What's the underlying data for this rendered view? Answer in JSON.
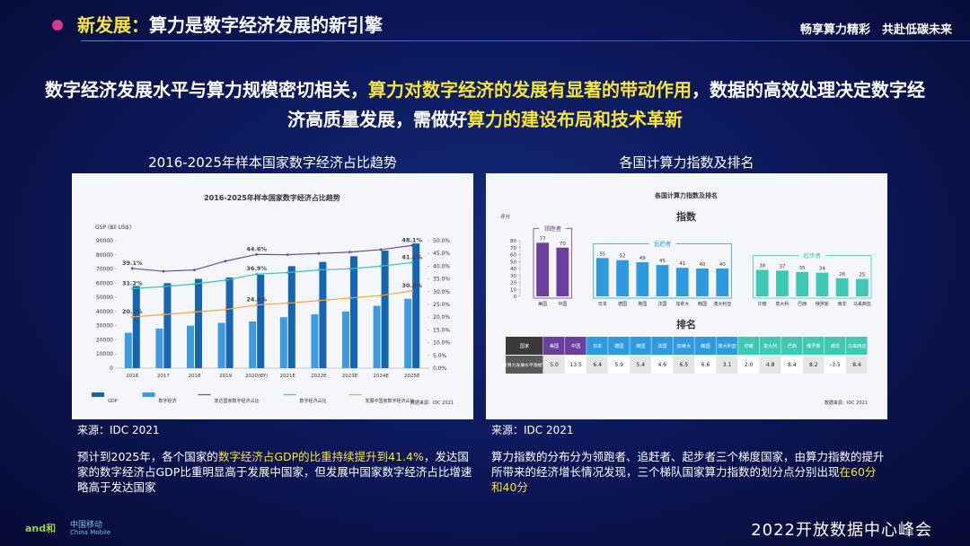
{
  "highlight_color": "#f7e43a",
  "header": {
    "title_segments": [
      {
        "text": "新发展：",
        "highlight": true
      },
      {
        "text": "算力是数字经济发展的新引擎",
        "highlight": false
      }
    ],
    "slogan": "畅享算力精彩　共赴低碳未来"
  },
  "headline": [
    {
      "text": "数字经济发展水平与算力规模密切相关，",
      "highlight": false
    },
    {
      "text": "算力对数字经济的发展有显著的带动作用",
      "highlight": true
    },
    {
      "text": "，数据的高效处理决定数字经济高质量发展，需做好",
      "highlight": false
    },
    {
      "text": "算力的建设布局和技术革新",
      "highlight": true
    }
  ],
  "sections": [
    {
      "heading": "2016-2025年样本国家数字经济占比趋势",
      "source": "来源：IDC 2021",
      "text": [
        {
          "text": "预计到2025年，各个国家的",
          "highlight": false
        },
        {
          "text": "数字经济占GDP的比重持续提升到41.4%",
          "highlight": true
        },
        {
          "text": "，发达国家的数字经济占GDP比重明显高于发展中国家，但发展中国家数字经济占比增速略高于发达国家",
          "highlight": false
        }
      ]
    },
    {
      "heading": "各国计算力指数及排名",
      "source": "来源：IDC 2021",
      "text": [
        {
          "text": "算力指数的分布分为领跑者、追赶者、起步者三个梯度国家，由算力指数的提升所带来的经济增长情况发现，三个梯队国家算力指数的划分点分别出现",
          "highlight": false
        },
        {
          "text": "在60分和40分",
          "highlight": true
        }
      ]
    }
  ],
  "chart_data": [
    {
      "type": "combo",
      "title": "2016-2025年样本国家数字经济占比趋势",
      "y_label": "GSP (Bil US$)",
      "source": "数据来源：IDC 2021",
      "categories": [
        "2016",
        "2017",
        "2018",
        "2019",
        "2020(BY)",
        "2021E",
        "2022E",
        "2023E",
        "2024E",
        "2025E"
      ],
      "series": [
        {
          "name": "GDP",
          "type": "bar",
          "color": "#1565b0",
          "values": [
            58000,
            60000,
            63000,
            64000,
            66000,
            72000,
            75000,
            79000,
            83000,
            88000
          ]
        },
        {
          "name": "数字经济",
          "type": "bar",
          "color": "#3d9be0",
          "values": [
            25000,
            28000,
            30000,
            32000,
            33000,
            36000,
            38000,
            40000,
            44000,
            49000
          ]
        },
        {
          "name": "发达国家数字经济占比",
          "type": "line",
          "axis": "y2",
          "color": "#6a4c9c",
          "values": [
            39.1,
            38,
            38.5,
            42,
            44.6,
            44.5,
            45,
            45.5,
            46.5,
            48.1
          ],
          "value_labels": [
            "39.1%",
            null,
            null,
            null,
            "44.6%",
            null,
            null,
            null,
            null,
            "48.1%"
          ]
        },
        {
          "name": "数字经济占比",
          "type": "line",
          "axis": "y2",
          "color": "#3cc4b4",
          "values": [
            31.2,
            32,
            33,
            34.5,
            36.9,
            37.5,
            38.5,
            39,
            40,
            41.4
          ],
          "value_labels": [
            "31.2%",
            null,
            null,
            null,
            "36.9%",
            null,
            null,
            null,
            null,
            "41.4%"
          ]
        },
        {
          "name": "发展中国家数字经济占比",
          "type": "line",
          "axis": "y2",
          "color": "#f4a93a",
          "values": [
            20.1,
            21,
            22,
            23,
            24.8,
            25.5,
            26.5,
            27.5,
            28.5,
            30.3
          ],
          "value_labels": [
            "20.1%",
            null,
            null,
            null,
            "24.8%",
            null,
            null,
            null,
            null,
            "30.3%"
          ]
        }
      ],
      "ylim": [
        0,
        90000
      ],
      "yticks": [
        0,
        10000,
        20000,
        30000,
        40000,
        50000,
        60000,
        70000,
        80000,
        90000
      ],
      "y2lim": [
        0,
        50
      ],
      "y2ticks": [
        {
          "value": 0,
          "label": "0.0%"
        },
        {
          "value": 5,
          "label": "5.0%"
        },
        {
          "value": 10,
          "label": "10.0%"
        },
        {
          "value": 15,
          "label": "15.0%"
        },
        {
          "value": 20,
          "label": "20.0%"
        },
        {
          "value": 25,
          "label": "25.0%"
        },
        {
          "value": 30,
          "label": "30.0%"
        },
        {
          "value": 35,
          "label": "35.0%"
        },
        {
          "value": 40,
          "label": "40.0%"
        },
        {
          "value": 45,
          "label": "45.0%"
        },
        {
          "value": 50,
          "label": "50.0%"
        }
      ],
      "grid": false
    },
    {
      "type": "groupbar",
      "title": "各国计算力指数及排名",
      "subtitle": "指数",
      "y_label": "评分",
      "source": "数据来源：IDC 2021",
      "groups": [
        {
          "name": "领跑者",
          "color": "#6a3fa0",
          "categories": [
            "美国",
            "中国"
          ],
          "values": [
            77,
            70
          ]
        },
        {
          "name": "追赶者",
          "color": "#2e9be0",
          "categories": [
            "日本",
            "德国",
            "英国",
            "法国",
            "加拿大",
            "韩国",
            "澳大利亚"
          ],
          "values": [
            55,
            52,
            49,
            45,
            41,
            40,
            40
          ]
        },
        {
          "name": "起步者",
          "color": "#3fc8b4",
          "categories": [
            "印度",
            "意大利",
            "巴西",
            "俄罗斯",
            "南非",
            "马来西亚"
          ],
          "values": [
            38,
            37,
            35,
            34,
            26,
            25
          ]
        }
      ],
      "ylim": [
        0,
        80
      ],
      "yticks": [
        0,
        10,
        20,
        30,
        40,
        50,
        60,
        70,
        80
      ],
      "table": {
        "title": "排名",
        "header": [
          "国家",
          "美国",
          "中国",
          "日本",
          "德国",
          "英国",
          "法国",
          "加拿大",
          "韩国",
          "澳大利亚",
          "印度",
          "意大利",
          "巴西",
          "俄罗斯",
          "南非",
          "马来西亚"
        ],
        "rows": [
          [
            "计算力发展水平涨幅%",
            "5.0",
            "13.5",
            "6.4",
            "5.9",
            "5.4",
            "4.6",
            "6.5",
            "6.6",
            "3.1",
            "2.0",
            "4.8",
            "8.4",
            "8.2",
            "-3.5",
            "8.4"
          ]
        ]
      }
    }
  ],
  "footer": {
    "event": "2022开放数据中心峰会",
    "logo_and": "and和",
    "logo_cm": "中国移动",
    "logo_cm_en": "China Mobile"
  }
}
